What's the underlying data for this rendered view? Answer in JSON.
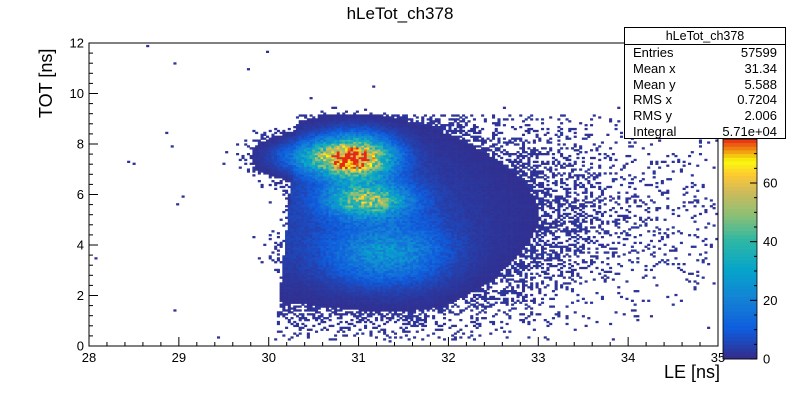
{
  "chart_data": {
    "type": "heatmap",
    "title": "hLeTot_ch378",
    "xlabel": "LE [ns]",
    "ylabel": "TOT [ns]",
    "xlim": [
      28,
      35
    ],
    "ylim": [
      0,
      12
    ],
    "x_ticks": [
      "28",
      "29",
      "30",
      "31",
      "32",
      "33",
      "34",
      "35"
    ],
    "y_ticks": [
      "0",
      "2",
      "4",
      "6",
      "8",
      "10",
      "12"
    ],
    "z_range": [
      0,
      75
    ],
    "z_ticks": [
      "0",
      "20",
      "40",
      "60"
    ],
    "bins_x": 231,
    "bins_y": 157,
    "clusters": [
      {
        "x": 30.95,
        "y": 7.45,
        "sx": 0.28,
        "sy": 0.55,
        "peak": 72
      },
      {
        "x": 31.1,
        "y": 5.8,
        "sx": 0.3,
        "sy": 0.45,
        "peak": 48
      },
      {
        "x": 31.3,
        "y": 3.7,
        "sx": 0.42,
        "sy": 0.8,
        "peak": 22
      },
      {
        "x": 30.5,
        "y": 7.5,
        "sx": 0.3,
        "sy": 0.4,
        "peak": 18
      }
    ],
    "stats": {
      "name": "hLeTot_ch378",
      "rows": [
        {
          "label": "Entries",
          "value": "57599"
        },
        {
          "label": "Mean x",
          "value": "31.34"
        },
        {
          "label": "Mean y",
          "value": "5.588"
        },
        {
          "label": "RMS x",
          "value": "0.7204"
        },
        {
          "label": "RMS y",
          "value": "2.006"
        },
        {
          "label": "Integral",
          "value": "5.71e+04"
        }
      ]
    }
  }
}
